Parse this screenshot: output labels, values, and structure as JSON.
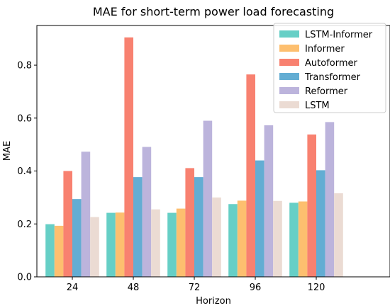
{
  "chart_data": {
    "type": "bar",
    "title": "MAE for short-term power load forecasting",
    "xlabel": "Horizon",
    "ylabel": "MAE",
    "categories": [
      "24",
      "48",
      "72",
      "96",
      "120"
    ],
    "ylim": [
      0,
      0.95
    ],
    "yticks": [
      "0.0",
      "0.2",
      "0.4",
      "0.6",
      "0.8"
    ],
    "grid": false,
    "legend_position": "top-right",
    "series": [
      {
        "name": "LSTM-Informer",
        "color": "#66cfc6",
        "values": [
          0.199,
          0.242,
          0.242,
          0.275,
          0.28
        ]
      },
      {
        "name": "Informer",
        "color": "#fdbf6f",
        "values": [
          0.193,
          0.243,
          0.258,
          0.288,
          0.285
        ]
      },
      {
        "name": "Autoformer",
        "color": "#f88170",
        "values": [
          0.4,
          0.905,
          0.411,
          0.765,
          0.538
        ]
      },
      {
        "name": "Transformer",
        "color": "#63add3",
        "values": [
          0.294,
          0.377,
          0.377,
          0.44,
          0.403
        ]
      },
      {
        "name": "Reformer",
        "color": "#bcb4dc",
        "values": [
          0.473,
          0.491,
          0.59,
          0.573,
          0.585
        ]
      },
      {
        "name": "LSTM",
        "color": "#ebdbd3",
        "values": [
          0.226,
          0.255,
          0.3,
          0.287,
          0.316
        ]
      }
    ]
  }
}
